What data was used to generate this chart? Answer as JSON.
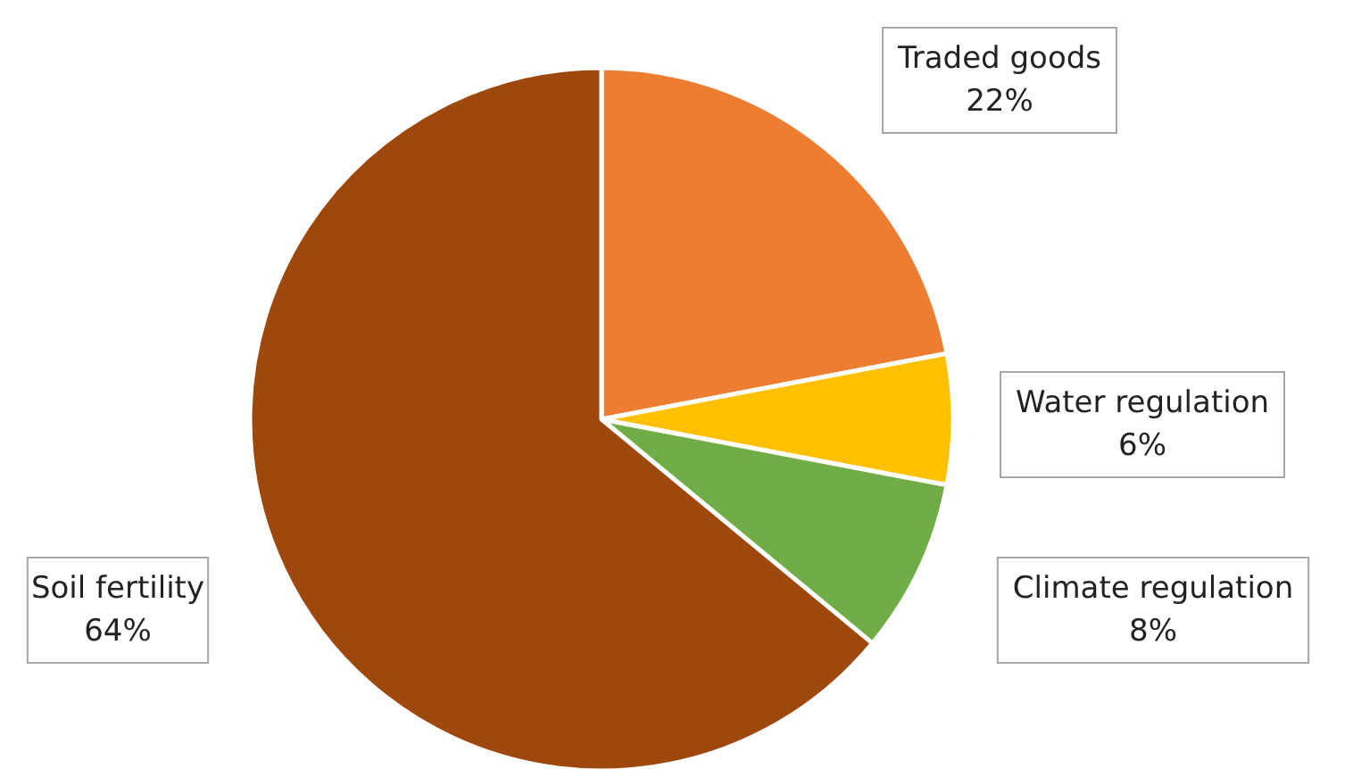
{
  "chart_data": {
    "type": "pie",
    "categories": [
      "Traded goods",
      "Water regulation",
      "Climate regulation",
      "Soil fertility"
    ],
    "values": [
      22,
      6,
      8,
      64
    ],
    "colors": [
      "#ed7d31",
      "#ffc000",
      "#70ad47",
      "#9e480e"
    ],
    "value_labels": [
      "22%",
      "6%",
      "8%",
      "64%"
    ],
    "legend": false
  }
}
